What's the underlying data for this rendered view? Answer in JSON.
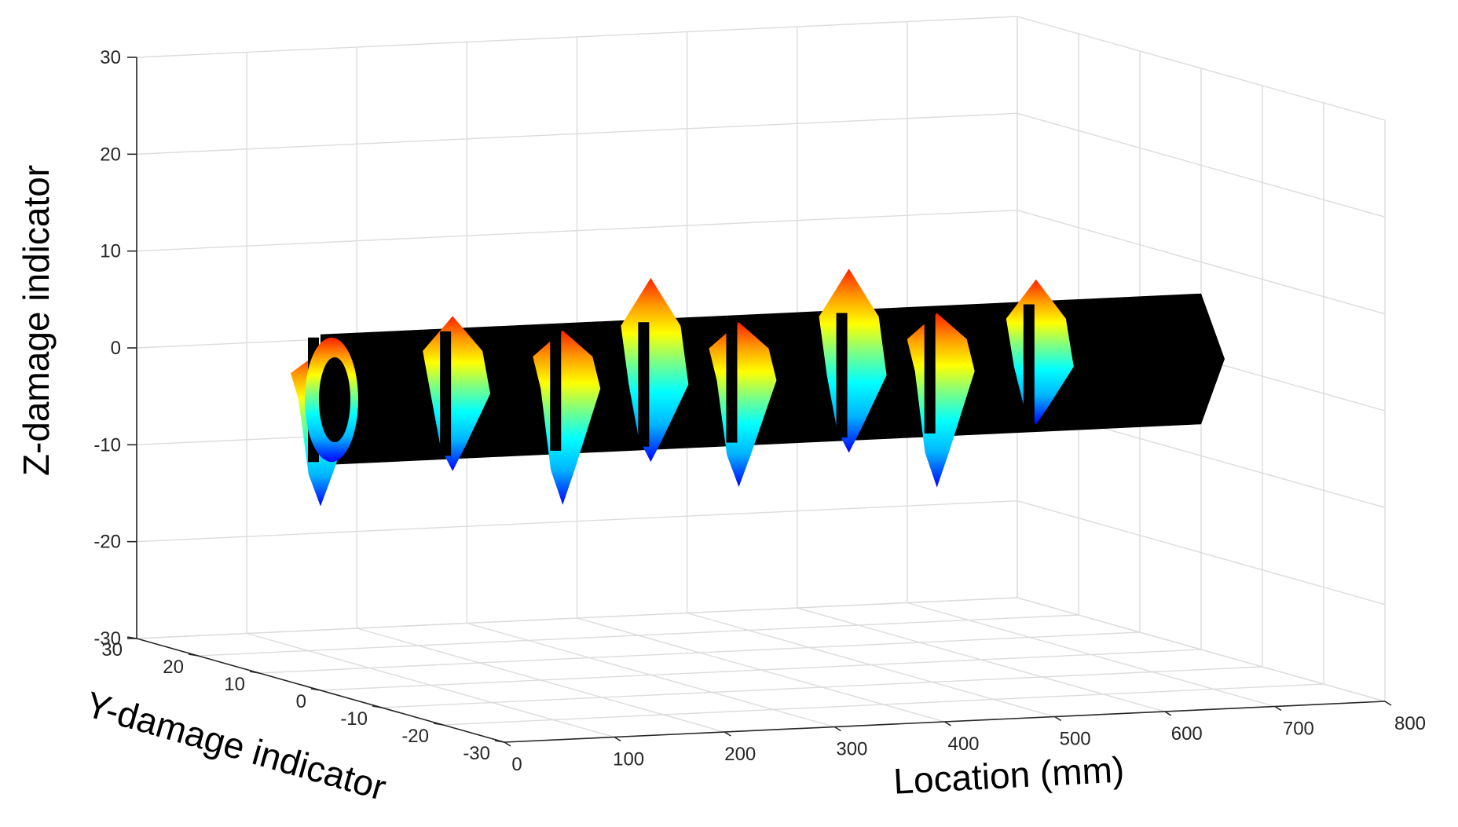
{
  "chart_data": {
    "type": "3d-surface",
    "title": "",
    "xlabel": "Location (mm)",
    "ylabel": "Y-damage indicator",
    "zlabel": "Z-damage indicator",
    "xlim": [
      0,
      800
    ],
    "ylim": [
      -30,
      30
    ],
    "zlim": [
      -30,
      30
    ],
    "x_ticks": [
      "0",
      "100",
      "200",
      "300",
      "400",
      "500",
      "600",
      "700",
      "800"
    ],
    "y_ticks": [
      "30",
      "20",
      "10",
      "0",
      "-10",
      "-20",
      "-30"
    ],
    "z_ticks": [
      "30",
      "20",
      "10",
      "0",
      "-10",
      "-20",
      "-30"
    ],
    "grid": true,
    "colormap": "jet",
    "colors": {
      "tube": "#000000",
      "colormap_stops": [
        "#0000ff",
        "#00b4ff",
        "#00ffff",
        "#80ff80",
        "#ffff00",
        "#ff9a00",
        "#ff2000"
      ]
    },
    "tube": {
      "x_start": 0,
      "x_end": 800,
      "radius": 5
    },
    "damage_markers": [
      {
        "x": 0,
        "z_max": 5,
        "z_min": -11
      },
      {
        "x": 120,
        "z_max": 8,
        "z_min": -8
      },
      {
        "x": 220,
        "z_max": 6,
        "z_min": -12
      },
      {
        "x": 300,
        "z_max": 11,
        "z_min": -8
      },
      {
        "x": 380,
        "z_max": 6,
        "z_min": -11
      },
      {
        "x": 480,
        "z_max": 11,
        "z_min": -8
      },
      {
        "x": 560,
        "z_max": 6,
        "z_min": -12
      },
      {
        "x": 650,
        "z_max": 9,
        "z_min": -6
      }
    ]
  }
}
